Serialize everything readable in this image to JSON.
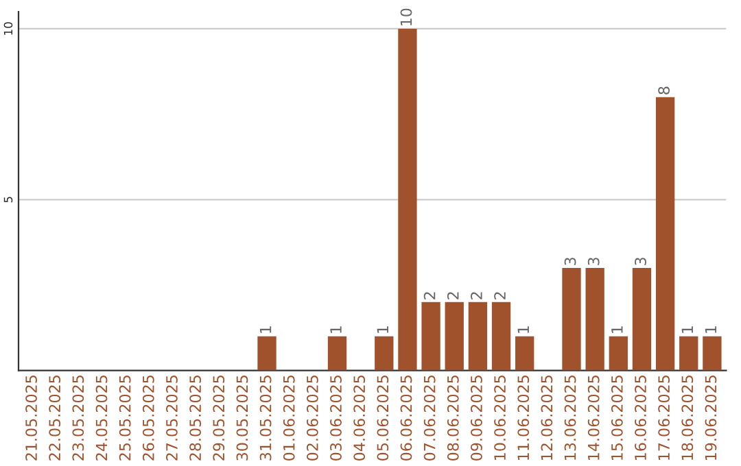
{
  "chart_data": {
    "type": "bar",
    "categories": [
      "21.05.2025",
      "22.05.2025",
      "23.05.2025",
      "24.05.2025",
      "25.05.2025",
      "26.05.2025",
      "27.05.2025",
      "28.05.2025",
      "29.05.2025",
      "30.05.2025",
      "31.05.2025",
      "01.06.2025",
      "02.06.2025",
      "03.06.2025",
      "04.06.2025",
      "05.06.2025",
      "06.06.2025",
      "07.06.2025",
      "08.06.2025",
      "09.06.2025",
      "10.06.2025",
      "11.06.2025",
      "12.06.2025",
      "13.06.2025",
      "14.06.2025",
      "15.06.2025",
      "16.06.2025",
      "17.06.2025",
      "18.06.2025",
      "19.06.2025"
    ],
    "values": [
      0,
      0,
      0,
      0,
      0,
      0,
      0,
      0,
      0,
      0,
      1,
      0,
      0,
      1,
      0,
      1,
      10,
      2,
      2,
      2,
      2,
      1,
      0,
      3,
      3,
      1,
      3,
      8,
      1,
      1
    ],
    "value_labels": [
      null,
      null,
      null,
      null,
      null,
      null,
      null,
      null,
      null,
      null,
      "1",
      null,
      null,
      "1",
      null,
      "1",
      "10",
      "2",
      "2",
      "2",
      "2",
      "1",
      null,
      "3",
      "3",
      "1",
      "3",
      "8",
      "1",
      "1"
    ],
    "color": "#a0522d",
    "ylim": [
      0,
      10.5
    ],
    "yticks": [
      5,
      10
    ],
    "grid": "y",
    "legend": false
  }
}
